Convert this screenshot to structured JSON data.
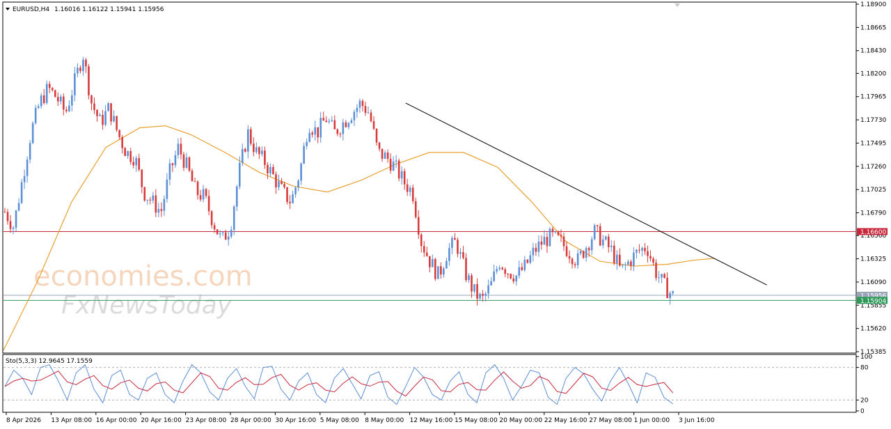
{
  "header": {
    "symbol": "EURUSD,H4",
    "ohlc": "1.16016 1.16122 1.15941 1.15956"
  },
  "watermark": {
    "brand": "economies.com",
    "sub": "FxNewsToday"
  },
  "colors": {
    "bull": "#5b8fd6",
    "bear": "#d63a3a",
    "ma": "#e8a030",
    "trendline": "#000000",
    "resistance": "#c8283c",
    "support": "#2e9a5a",
    "stoch_main": "#5b8fd6",
    "stoch_signal": "#c8283c",
    "border": "#000000"
  },
  "chart_data": {
    "type": "candlestick",
    "symbol": "EURUSD",
    "timeframe": "H4",
    "ylim": [
      1.15385,
      1.189
    ],
    "price_ticks": [
      "1.18900",
      "1.18665",
      "1.18430",
      "1.18200",
      "1.17965",
      "1.17730",
      "1.17495",
      "1.17260",
      "1.17025",
      "1.16790",
      "1.16560",
      "1.16325",
      "1.16090",
      "1.15855",
      "1.15620",
      "1.15385"
    ],
    "time_labels": [
      "8 Apr 2026",
      "13 Apr 08:00",
      "16 Apr 00:00",
      "20 Apr 16:00",
      "23 Apr 08:00",
      "28 Apr 00:00",
      "30 Apr 16:00",
      "5 May 08:00",
      "8 May 00:00",
      "12 May 16:00",
      "15 May 08:00",
      "20 May 00:00",
      "22 May 16:00",
      "27 May 08:00",
      "1 Jun 00:00",
      "3 Jun 16:00"
    ],
    "close_path": [
      1.168,
      1.1665,
      1.1712,
      1.176,
      1.179,
      1.1805,
      1.1795,
      1.178,
      1.181,
      1.184,
      1.179,
      1.177,
      1.1785,
      1.176,
      1.174,
      1.1735,
      1.17,
      1.169,
      1.168,
      1.172,
      1.1745,
      1.1725,
      1.17,
      1.1695,
      1.167,
      1.165,
      1.1665,
      1.172,
      1.176,
      1.174,
      1.173,
      1.1715,
      1.17,
      1.169,
      1.172,
      1.177,
      1.176,
      1.1775,
      1.176,
      1.177,
      1.178,
      1.179,
      1.178,
      1.174,
      1.1735,
      1.1725,
      1.171,
      1.17,
      1.165,
      1.163,
      1.1615,
      1.164,
      1.165,
      1.162,
      1.16,
      1.159,
      1.1605,
      1.163,
      1.162,
      1.1615,
      1.1625,
      1.164,
      1.165,
      1.1655,
      1.165,
      1.164,
      1.163,
      1.1645,
      1.166,
      1.165,
      1.164,
      1.162,
      1.163,
      1.164,
      1.1645,
      1.162,
      1.1605,
      1.1595
    ],
    "ma": {
      "x_frac": [
        0.0,
        0.04,
        0.08,
        0.12,
        0.16,
        0.19,
        0.22,
        0.26,
        0.3,
        0.34,
        0.38,
        0.42,
        0.46,
        0.5,
        0.54,
        0.58,
        0.62,
        0.66,
        0.7,
        0.74,
        0.78,
        0.81,
        0.835
      ],
      "values": [
        1.154,
        1.161,
        1.169,
        1.1745,
        1.1765,
        1.1767,
        1.1758,
        1.174,
        1.172,
        1.1706,
        1.17,
        1.1712,
        1.1728,
        1.174,
        1.174,
        1.1725,
        1.169,
        1.165,
        1.163,
        1.1625,
        1.1627,
        1.1631,
        1.1633
      ]
    },
    "trendline": {
      "x_frac": [
        0.472,
        0.896
      ],
      "values": [
        1.179,
        1.1606
      ]
    },
    "resistance": {
      "value": 1.166,
      "label": "1.16600"
    },
    "support": {
      "value": 1.15904,
      "label": "1.15904"
    },
    "current": {
      "value": 1.15956,
      "label": "1.15956"
    },
    "stochastic": {
      "label": "Sto(5,3,3) 12.9645 17.1559",
      "ylim": [
        0,
        100
      ],
      "ticks": [
        "100",
        "80",
        "20",
        "0"
      ],
      "levels": [
        80,
        20
      ],
      "main_path": [
        45,
        75,
        60,
        30,
        80,
        85,
        55,
        20,
        70,
        85,
        40,
        15,
        65,
        75,
        30,
        20,
        60,
        70,
        30,
        15,
        55,
        85,
        70,
        35,
        20,
        60,
        78,
        45,
        22,
        80,
        82,
        40,
        20,
        55,
        70,
        30,
        15,
        60,
        78,
        50,
        22,
        65,
        72,
        25,
        12,
        45,
        80,
        62,
        30,
        20,
        55,
        72,
        30,
        15,
        70,
        85,
        60,
        20,
        45,
        75,
        70,
        25,
        12,
        60,
        80,
        68,
        40,
        18,
        55,
        80,
        50,
        15,
        70,
        62,
        25,
        13
      ]
    }
  }
}
